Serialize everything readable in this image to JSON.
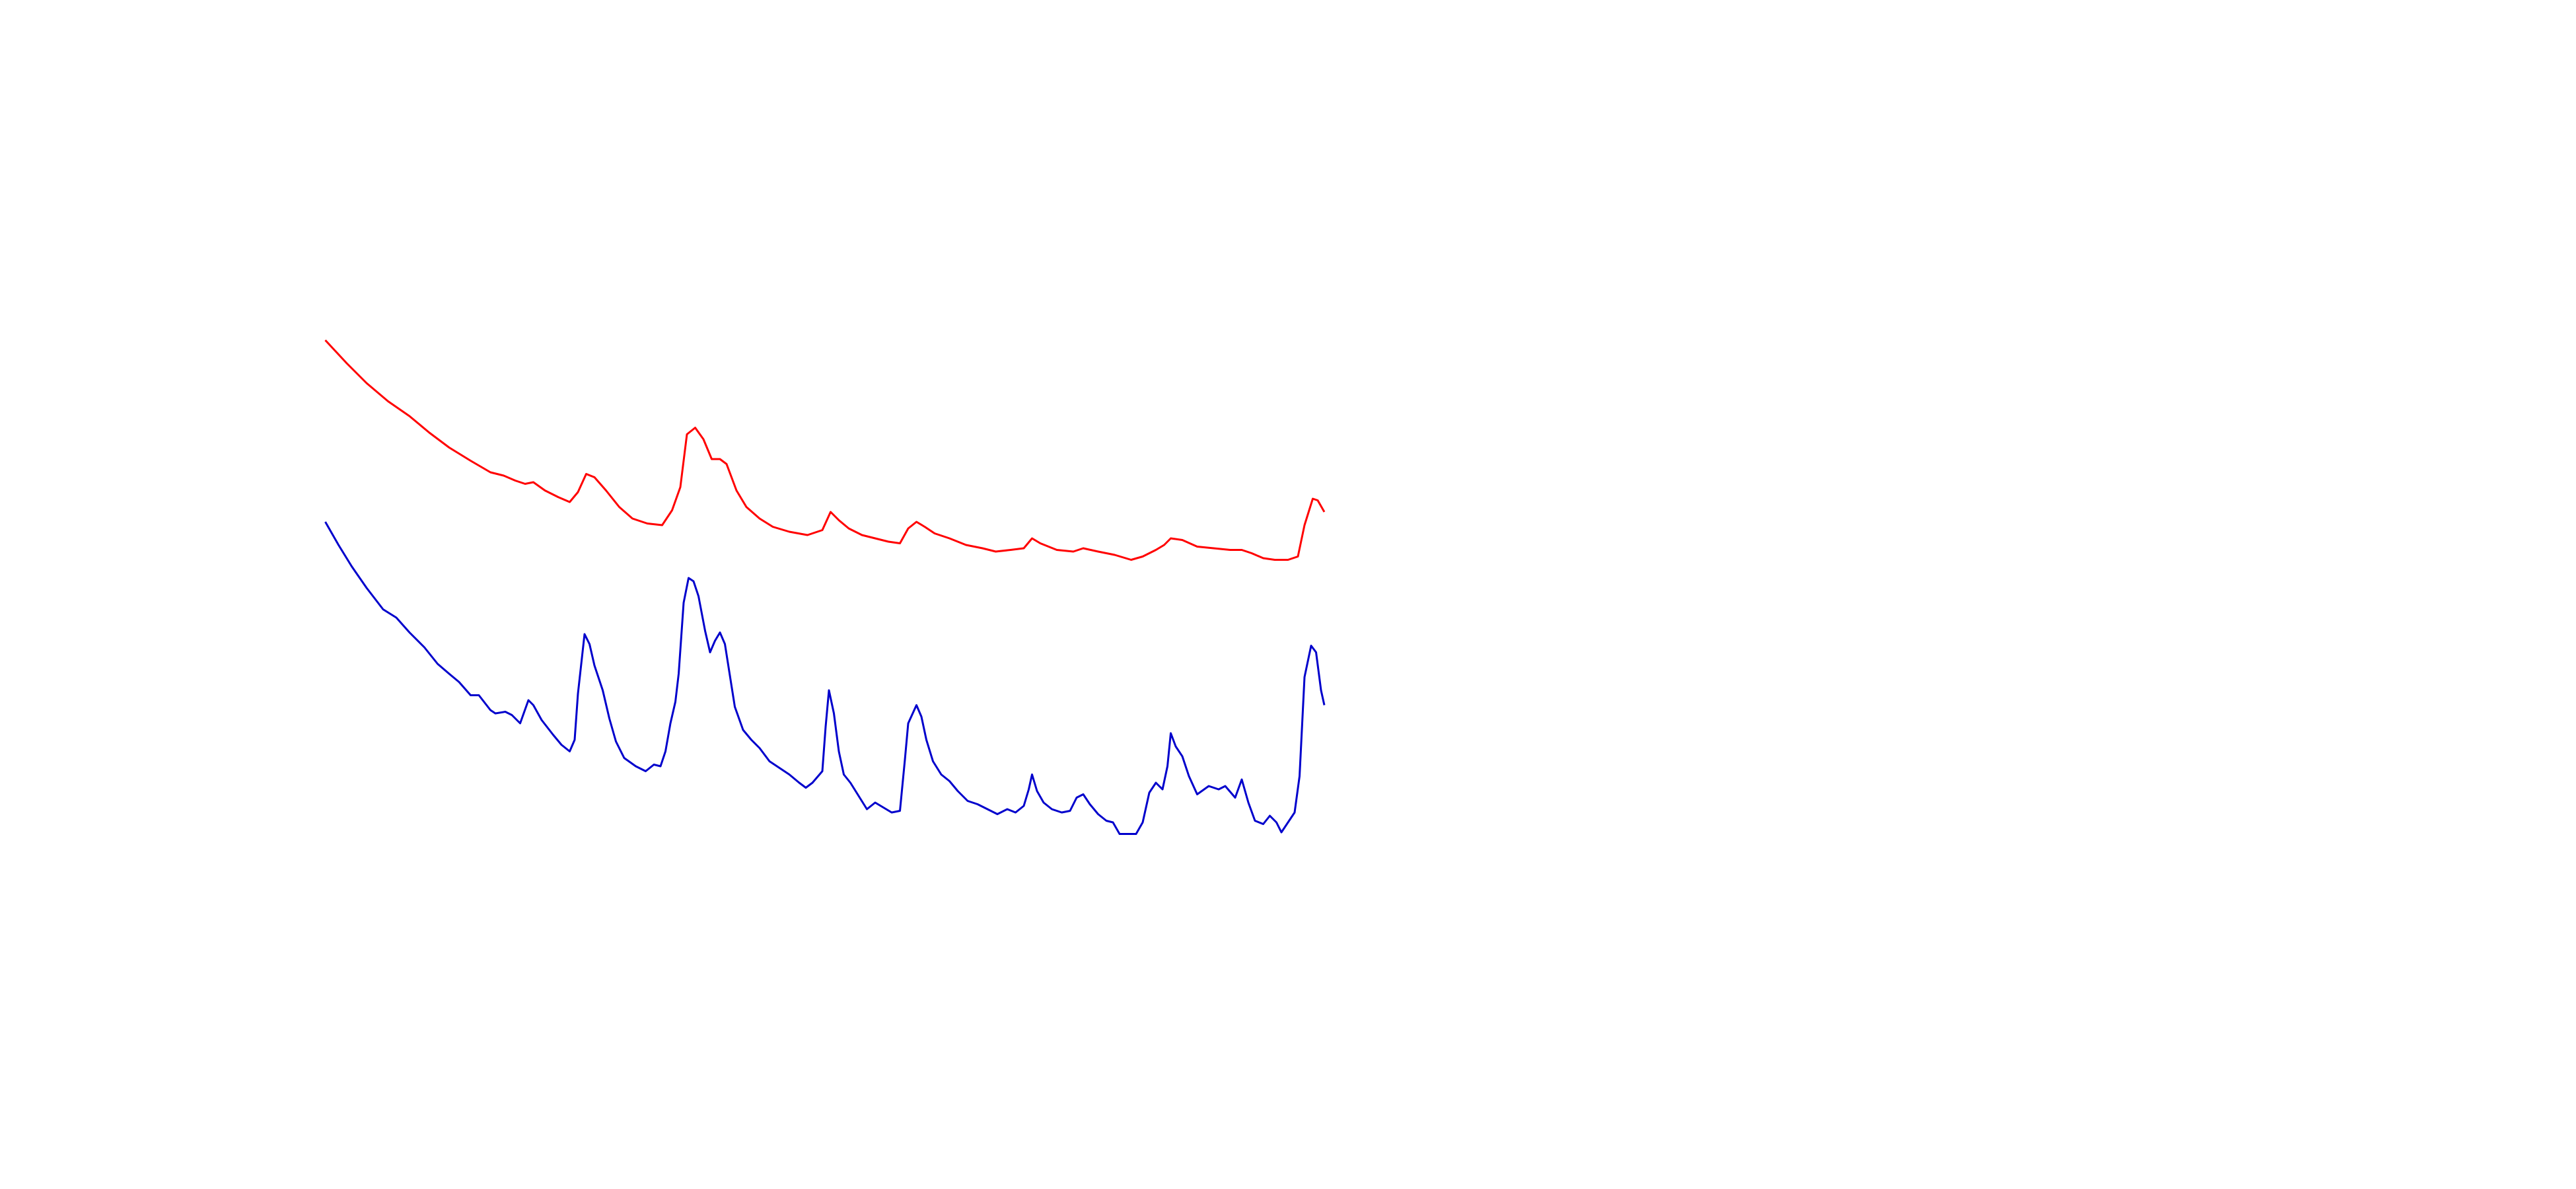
{
  "chart_data": {
    "type": "line",
    "xlim": [
      0,
      1560
    ],
    "ylim": [
      0,
      720
    ],
    "series": [
      {
        "color": "#ff0000",
        "x": [
          197,
          210,
          222,
          235,
          248,
          260,
          272,
          285,
          297,
          305,
          312,
          318,
          323,
          330,
          338,
          345,
          350,
          355,
          360,
          367,
          375,
          383,
          392,
          401,
          407,
          412,
          416,
          421,
          426,
          431,
          436,
          440,
          446,
          452,
          460,
          468,
          478,
          489,
          498,
          503,
          508,
          514,
          522,
          530,
          538,
          545,
          550,
          555,
          560,
          566,
          575,
          585,
          595,
          603,
          612,
          620,
          625,
          630,
          640,
          650,
          656,
          665,
          675,
          685,
          692,
          700,
          705,
          709,
          716,
          725,
          735,
          745,
          752,
          758,
          765,
          772,
          780,
          786,
          790,
          795,
          798,
          802
        ],
        "values": [
          514,
          500,
          488,
          477,
          468,
          458,
          449,
          441,
          434,
          432,
          429,
          427,
          428,
          423,
          419,
          416,
          422,
          433,
          431,
          423,
          413,
          406,
          403,
          402,
          411,
          425,
          457,
          461,
          454,
          442,
          442,
          439,
          423,
          413,
          406,
          401,
          398,
          396,
          399,
          410,
          405,
          400,
          396,
          394,
          392,
          391,
          400,
          404,
          401,
          397,
          394,
          390,
          388,
          386,
          387,
          388,
          394,
          391,
          387,
          386,
          388,
          386,
          384,
          381,
          383,
          387,
          390,
          394,
          393,
          389,
          388,
          387,
          387,
          385,
          382,
          381,
          381,
          383,
          402,
          418,
          417,
          410
        ]
      },
      {
        "color": "#0000cc",
        "x": [
          197,
          205,
          213,
          222,
          232,
          240,
          248,
          257,
          265,
          272,
          278,
          285,
          290,
          297,
          300,
          306,
          310,
          315,
          320,
          323,
          328,
          335,
          340,
          345,
          348,
          350,
          354,
          357,
          360,
          365,
          369,
          373,
          378,
          385,
          391,
          396,
          400,
          403,
          406,
          409,
          411,
          414,
          417,
          420,
          423,
          427,
          430,
          433,
          436,
          439,
          442,
          445,
          450,
          455,
          460,
          466,
          472,
          478,
          484,
          488,
          492,
          498,
          500,
          502,
          505,
          508,
          511,
          515,
          520,
          525,
          530,
          535,
          540,
          545,
          548,
          550,
          555,
          558,
          561,
          565,
          570,
          575,
          580,
          586,
          592,
          598,
          604,
          610,
          615,
          620,
          623,
          625,
          628,
          632,
          637,
          643,
          648,
          652,
          656,
          660,
          665,
          670,
          674,
          678,
          683,
          688,
          692,
          696,
          700,
          704,
          707,
          709,
          712,
          716,
          720,
          725,
          732,
          738,
          742,
          748,
          752,
          756,
          760,
          765,
          769,
          773,
          776,
          780,
          784,
          787,
          790,
          794,
          797,
          800,
          802
        ],
        "values": [
          404,
          390,
          377,
          364,
          351,
          346,
          337,
          328,
          318,
          312,
          307,
          299,
          299,
          290,
          288,
          289,
          287,
          282,
          296,
          293,
          284,
          275,
          269,
          265,
          272,
          300,
          336,
          330,
          317,
          302,
          285,
          271,
          261,
          256,
          253,
          257,
          256,
          265,
          282,
          295,
          312,
          355,
          370,
          368,
          359,
          338,
          325,
          332,
          337,
          330,
          311,
          292,
          278,
          272,
          267,
          259,
          255,
          251,
          246,
          243,
          246,
          253,
          280,
          302,
          288,
          265,
          251,
          246,
          238,
          230,
          234,
          231,
          228,
          229,
          260,
          282,
          293,
          286,
          272,
          259,
          251,
          247,
          241,
          235,
          233,
          230,
          227,
          230,
          228,
          232,
          242,
          251,
          241,
          234,
          230,
          228,
          229,
          237,
          239,
          233,
          227,
          223,
          222,
          215,
          215,
          215,
          222,
          240,
          246,
          242,
          256,
          276,
          268,
          262,
          250,
          239,
          244,
          242,
          244,
          237,
          248,
          234,
          223,
          221,
          226,
          222,
          216,
          222,
          228,
          250,
          310,
          329,
          325,
          302,
          293
        ]
      }
    ]
  }
}
